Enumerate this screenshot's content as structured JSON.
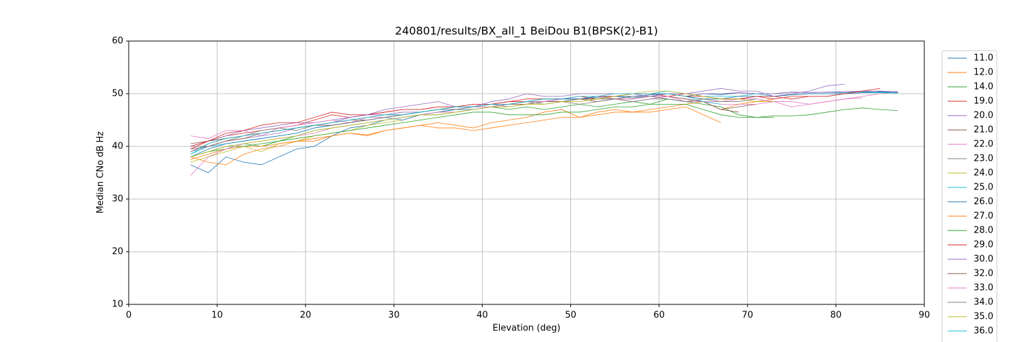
{
  "chart_data": {
    "type": "line",
    "title": "240801/results/BX_all_1 BeiDou B1(BPSK(2)-B1)",
    "x_label": "Elevation (deg)",
    "y_label": "Median CNo dB Hz",
    "xlim": [
      0,
      90
    ],
    "xticks": [
      0,
      10,
      20,
      30,
      40,
      50,
      60,
      70,
      80,
      90
    ],
    "ylim": [
      10,
      60
    ],
    "yticks": [
      10,
      20,
      30,
      40,
      50,
      60
    ],
    "grid": true,
    "x": [
      7,
      9,
      11,
      13,
      15,
      17,
      19,
      21,
      23,
      25,
      27,
      29,
      31,
      33,
      35,
      37,
      39,
      41,
      43,
      45,
      47,
      49,
      51,
      53,
      55,
      57,
      59,
      61,
      63,
      65,
      67,
      69,
      71,
      73,
      75,
      77,
      79,
      81,
      83,
      85,
      87
    ],
    "series": [
      {
        "name": "11.0",
        "color": "#1f77b4",
        "values": [
          36.5,
          35,
          38,
          37,
          36.5,
          38,
          39.5,
          40,
          42,
          43.5,
          44,
          45,
          45.5,
          46,
          46.5,
          47,
          47.5,
          48,
          48,
          48.5,
          48.5,
          49,
          49,
          49.3,
          49.5,
          49.2,
          49.5,
          50,
          49.5,
          50,
          49.8,
          50.2,
          50,
          50,
          50.3,
          50.2,
          50.3,
          50.2,
          50.4,
          50.3,
          50.2
        ]
      },
      {
        "name": "12.0",
        "color": "#ff7f0e",
        "values": [
          38,
          37,
          36.5,
          38.5,
          39.5,
          40,
          41,
          41.5,
          42,
          42.5,
          42.2,
          43,
          43.5,
          44,
          44.5,
          44,
          43.5,
          44.5,
          45,
          45.5,
          46.5,
          47,
          45.5,
          46.5,
          47,
          46.5,
          47,
          47.5,
          48,
          48.5,
          47,
          48,
          48.5,
          49,
          null,
          null,
          null,
          null,
          null,
          null,
          null
        ]
      },
      {
        "name": "14.0",
        "color": "#2ca02c",
        "values": [
          38,
          39,
          39.5,
          40.5,
          40,
          41,
          42,
          43,
          43.5,
          44,
          44.5,
          45,
          45.5,
          46,
          46,
          46.5,
          47,
          47.5,
          47,
          47.5,
          47,
          47.5,
          48,
          47.5,
          48,
          48.5,
          48,
          49,
          48.5,
          48,
          47.5,
          46,
          45.5,
          45.5,
          null,
          null,
          null,
          null,
          null,
          null,
          null
        ]
      },
      {
        "name": "19.0",
        "color": "#d62728",
        "values": [
          39.5,
          41,
          42,
          42.5,
          43,
          43.5,
          44,
          45,
          46,
          45.5,
          46,
          46.5,
          47,
          47,
          47.5,
          47.5,
          48,
          48,
          48.5,
          48.5,
          49,
          49,
          49.5,
          49,
          49.5,
          50,
          50,
          49.5,
          50,
          49.5,
          49,
          49,
          49.5,
          49,
          49.5,
          49.5,
          49.5,
          50,
          50.5,
          null,
          null
        ]
      },
      {
        "name": "20.0",
        "color": "#9467bd",
        "values": [
          40,
          41,
          42,
          43,
          43.5,
          44,
          44.5,
          44.5,
          45,
          45.5,
          46,
          46,
          46.5,
          46.5,
          47,
          47.5,
          47.5,
          48,
          48,
          48.5,
          48.5,
          49,
          49,
          49,
          49.5,
          49.5,
          49.5,
          50,
          49.5,
          50,
          50,
          50.2,
          50,
          50,
          50.3,
          50.2,
          50.3,
          50.4,
          50.5,
          50.5,
          50.4
        ]
      },
      {
        "name": "21.0",
        "color": "#8c564b",
        "values": [
          40.5,
          41,
          41.5,
          42,
          42.5,
          43,
          43.5,
          44,
          44.5,
          45,
          45,
          45.5,
          46,
          46.5,
          47,
          47,
          47.5,
          47.5,
          48,
          48,
          48.5,
          48.5,
          49,
          48.5,
          49,
          49,
          49.5,
          49.5,
          49,
          48.5,
          47,
          47.5,
          48,
          null,
          null,
          null,
          null,
          null,
          null,
          null,
          null
        ]
      },
      {
        "name": "22.0",
        "color": "#e377c2",
        "values": [
          42,
          41.5,
          43,
          43,
          42,
          43.5,
          44,
          44.5,
          45,
          44.5,
          45.5,
          45.5,
          46,
          46.5,
          47,
          47,
          47.5,
          47.5,
          48,
          48.5,
          48.5,
          49,
          49.5,
          49.5,
          49,
          48.5,
          49,
          49.5,
          49,
          48.5,
          48.5,
          49,
          49,
          48.5,
          48.5,
          48,
          48.5,
          49,
          49.5,
          50,
          50.3
        ]
      },
      {
        "name": "23.0",
        "color": "#7f7f7f",
        "values": [
          40,
          40,
          41,
          42,
          43,
          43.5,
          43,
          44,
          44.5,
          45,
          45.5,
          46,
          46,
          46.5,
          47,
          47,
          47.5,
          48,
          47.5,
          48,
          48.5,
          48.5,
          48,
          48.5,
          49,
          48.5,
          49,
          49,
          48.5,
          49,
          null,
          null,
          null,
          null,
          null,
          null,
          null,
          null,
          null,
          null,
          null
        ]
      },
      {
        "name": "24.0",
        "color": "#bcbd22",
        "values": [
          37,
          38,
          39,
          40,
          39,
          40.5,
          41,
          42,
          42.5,
          43,
          44,
          44.5,
          45,
          46,
          46.5,
          46.5,
          47,
          47.5,
          47.5,
          48,
          48,
          48.5,
          49,
          49,
          49.5,
          50,
          50,
          50,
          49.5,
          49,
          48.5,
          48.5,
          null,
          null,
          null,
          null,
          null,
          null,
          null,
          null,
          null
        ]
      },
      {
        "name": "25.0",
        "color": "#17becf",
        "values": [
          38.5,
          40,
          40.5,
          41,
          41.5,
          42,
          42.5,
          43.5,
          44,
          44.5,
          45,
          45.5,
          46,
          46.5,
          47,
          47.5,
          47.5,
          48,
          48,
          48.5,
          49,
          49,
          49.5,
          49.5,
          49.5,
          50,
          50,
          50.5,
          50,
          49.5,
          49.5,
          49.5,
          50,
          49.5,
          49.8,
          50,
          50,
          50,
          50.2,
          50.2,
          50.1
        ]
      },
      {
        "name": "26.0",
        "color": "#1f77b4",
        "values": [
          38,
          39.5,
          40.5,
          41,
          41.5,
          42,
          42.5,
          43.5,
          44,
          44.5,
          45,
          45.5,
          45,
          46,
          46.5,
          47,
          47,
          47.5,
          48,
          48.5,
          48.5,
          49,
          49,
          49.5,
          49.5,
          49.5,
          49.8,
          50,
          49.5,
          49,
          49,
          49.5,
          49.5,
          49.5,
          49.8,
          50,
          50,
          50,
          50.2,
          50.4,
          50.2
        ]
      },
      {
        "name": "27.0",
        "color": "#ff7f0e",
        "values": [
          37.5,
          38.5,
          39.5,
          40,
          40,
          40.5,
          41,
          41,
          42,
          42.5,
          42,
          43,
          43.5,
          44,
          43.5,
          43.5,
          43,
          43.5,
          44,
          44.5,
          45,
          45.5,
          45.5,
          46,
          46.5,
          46.5,
          46.5,
          47,
          47.5,
          46,
          44.5,
          null,
          null,
          null,
          null,
          null,
          null,
          null,
          null,
          null,
          null
        ]
      },
      {
        "name": "28.0",
        "color": "#2ca02c",
        "values": [
          38,
          39,
          40,
          40,
          40.5,
          41,
          41.5,
          42,
          42.5,
          43,
          43.5,
          44,
          44.5,
          45,
          45.5,
          46,
          46.5,
          46.5,
          46,
          46,
          46,
          46.5,
          46.5,
          47,
          47.5,
          47.5,
          48,
          48,
          48,
          47,
          46,
          45.5,
          45.5,
          45.8,
          45.8,
          46,
          46.5,
          47,
          47.3,
          47,
          46.8
        ]
      },
      {
        "name": "29.0",
        "color": "#d62728",
        "values": [
          40,
          41,
          42.5,
          43,
          44,
          44.5,
          44.5,
          45.5,
          46.5,
          46,
          46,
          46.5,
          47,
          47,
          47.5,
          47.5,
          48,
          48,
          48.5,
          49,
          49,
          49,
          49.5,
          49.5,
          49.5,
          50,
          50,
          50,
          49.5,
          49.5,
          49,
          49,
          49.5,
          49.5,
          49,
          49.5,
          49.5,
          50,
          50.5,
          51,
          null
        ]
      },
      {
        "name": "30.0",
        "color": "#9467bd",
        "values": [
          39,
          40,
          41,
          41.5,
          42,
          42.5,
          43.5,
          44,
          44.5,
          45.5,
          46,
          47,
          47.5,
          48,
          48.5,
          47.5,
          47.5,
          48.5,
          49,
          50,
          49.5,
          49.5,
          50,
          50,
          50,
          50,
          49.5,
          50,
          50,
          50.5,
          51,
          50.5,
          50.5,
          49.5,
          50,
          50.5,
          51.5,
          51.8,
          null,
          null,
          null
        ]
      },
      {
        "name": "32.0",
        "color": "#8c564b",
        "values": [
          39.5,
          40,
          41,
          41.5,
          42.5,
          43,
          43.5,
          44,
          44,
          44.5,
          45,
          45.5,
          46,
          46.5,
          47,
          47,
          47.5,
          48,
          48,
          48,
          48.5,
          48.5,
          49,
          49,
          49,
          49.5,
          49.5,
          49.5,
          49,
          48.5,
          47,
          46.5,
          null,
          null,
          null,
          null,
          null,
          null,
          null,
          null,
          null
        ]
      },
      {
        "name": "33.0",
        "color": "#e377c2",
        "values": [
          34.5,
          38,
          39.5,
          40.5,
          41,
          41.5,
          42,
          42.5,
          43.5,
          44,
          44.5,
          45,
          45.5,
          46,
          46.5,
          46.5,
          47,
          47.5,
          48,
          48.5,
          48.5,
          49,
          49.5,
          49.5,
          49,
          49,
          49.5,
          49.5,
          48.5,
          48.5,
          48,
          48,
          48,
          48.5,
          47.5,
          48,
          48.5,
          49,
          49.2,
          null,
          null
        ]
      },
      {
        "name": "34.0",
        "color": "#7f7f7f",
        "values": [
          39,
          40.5,
          41.5,
          42,
          42.5,
          43,
          43.5,
          44,
          44.5,
          45,
          45,
          45.5,
          46,
          46.5,
          47,
          47,
          47.5,
          48,
          48,
          48.5,
          48,
          48.5,
          49,
          49,
          49,
          49.5,
          49.5,
          49,
          48.5,
          49,
          48.5,
          48.5,
          49,
          null,
          null,
          null,
          null,
          null,
          null,
          null,
          null
        ]
      },
      {
        "name": "35.0",
        "color": "#bcbd22",
        "values": [
          38,
          39,
          40,
          40.5,
          41,
          41.5,
          42,
          43,
          43.5,
          44,
          44.5,
          45,
          45.5,
          46,
          46,
          46.5,
          47,
          47.5,
          47.5,
          48,
          48,
          48.5,
          48.5,
          49,
          49.5,
          50,
          50.5,
          50.5,
          50,
          49.5,
          49,
          49,
          48.5,
          48.5,
          null,
          null,
          null,
          null,
          null,
          null,
          null
        ]
      },
      {
        "name": "36.0",
        "color": "#17becf",
        "values": [
          38.5,
          40.5,
          41.5,
          42,
          42.5,
          43,
          43.5,
          44,
          44.5,
          45,
          45.5,
          46,
          46,
          46.5,
          47,
          47.5,
          47.5,
          48,
          48,
          48.5,
          49,
          49,
          49.5,
          49.5,
          50,
          50,
          50,
          50,
          49.5,
          48.5,
          48,
          null,
          null,
          null,
          null,
          null,
          null,
          null,
          null,
          null,
          null
        ]
      }
    ]
  }
}
